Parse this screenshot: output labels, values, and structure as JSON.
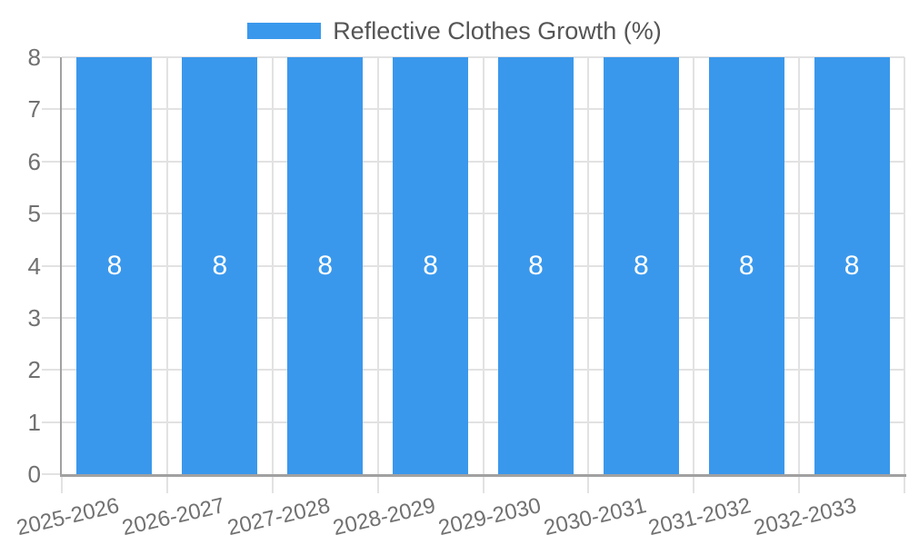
{
  "chart_data": {
    "type": "bar",
    "title": "",
    "categories": [
      "2025-2026",
      "2026-2027",
      "2027-2028",
      "2028-2029",
      "2029-2030",
      "2030-2031",
      "2031-2032",
      "2032-2033"
    ],
    "series": [
      {
        "name": "Reflective Clothes Growth (%)",
        "values": [
          8,
          8,
          8,
          8,
          8,
          8,
          8,
          8
        ]
      }
    ],
    "bar_labels": [
      "8",
      "8",
      "8",
      "8",
      "8",
      "8",
      "8",
      "8"
    ],
    "xlabel": "",
    "ylabel": "",
    "ylim": [
      0,
      8
    ],
    "y_ticks": [
      0,
      1,
      2,
      3,
      4,
      5,
      6,
      7,
      8
    ],
    "grid": true,
    "legend_position": "top",
    "colors": {
      "bar": "#3a98ec",
      "grid": "#e2e2e2",
      "axis": "#a1a1a1",
      "tick_text": "#717171",
      "legend_text": "#555555",
      "bar_label_text": "#ffffff",
      "background": "#ffffff"
    }
  }
}
